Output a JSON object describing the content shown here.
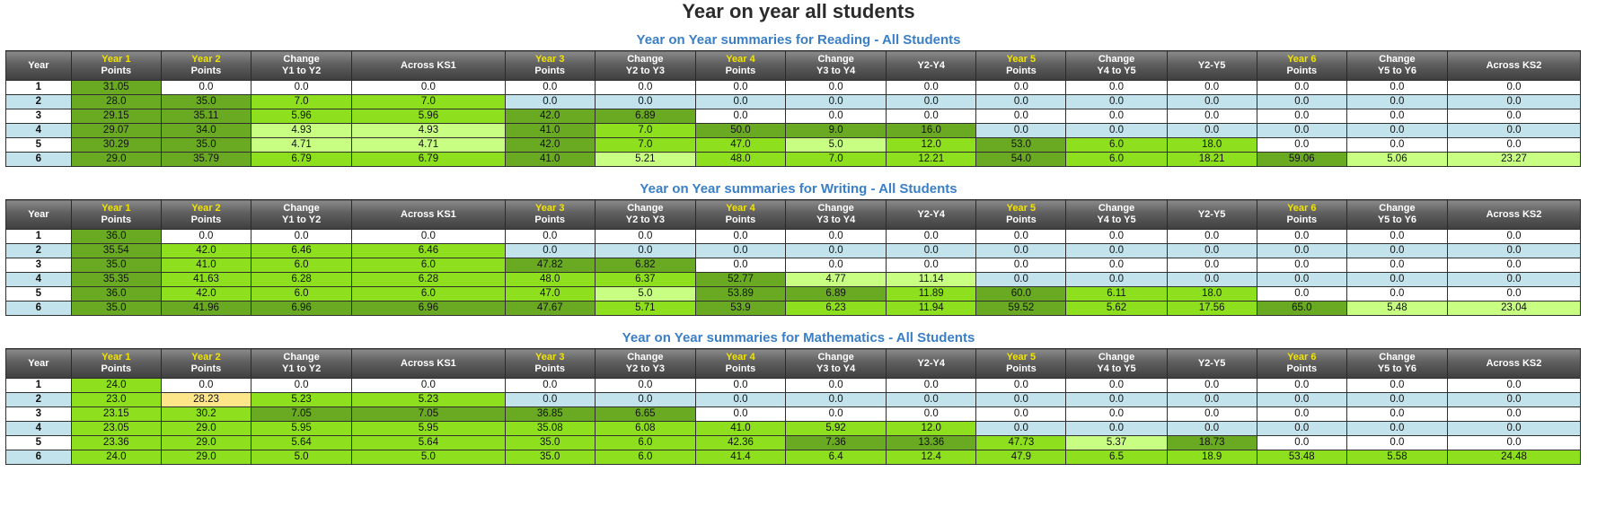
{
  "page": {
    "title": "Year on year all students"
  },
  "columns": [
    {
      "year": "",
      "label": "Year"
    },
    {
      "year": "Year 1",
      "label": "Points"
    },
    {
      "year": "Year 2",
      "label": "Points"
    },
    {
      "year": "",
      "label": "Change\nY1 to Y2"
    },
    {
      "year": "",
      "label": "Across KS1"
    },
    {
      "year": "Year 3",
      "label": "Points"
    },
    {
      "year": "",
      "label": "Change\nY2 to Y3"
    },
    {
      "year": "Year 4",
      "label": "Points"
    },
    {
      "year": "",
      "label": "Change\nY3 to Y4"
    },
    {
      "year": "",
      "label": "Y2-Y4"
    },
    {
      "year": "Year 5",
      "label": "Points"
    },
    {
      "year": "",
      "label": "Change\nY4 to Y5"
    },
    {
      "year": "",
      "label": "Y2-Y5"
    },
    {
      "year": "Year 6",
      "label": "Points"
    },
    {
      "year": "",
      "label": "Change\nY5 to Y6"
    },
    {
      "year": "",
      "label": "Across KS2"
    }
  ],
  "colors": {
    "white": "#ffffff",
    "blue": "#c3e3ec",
    "dark": "#6aaa22",
    "mid": "#8ee01f",
    "light": "#c8ff83",
    "yellow": "#fde68a",
    "section_title": "#3a7fc6",
    "header_year": "#f2e400"
  },
  "sections": [
    {
      "title": "Year on Year summaries for Reading - All Students",
      "rows": [
        {
          "c": [
            "1",
            "31.05",
            "0.0",
            "0.0",
            "0.0",
            "0.0",
            "0.0",
            "0.0",
            "0.0",
            "0.0",
            "0.0",
            "0.0",
            "0.0",
            "0.0",
            "0.0",
            "0.0"
          ],
          "s": [
            "white",
            "dark",
            "white",
            "white",
            "white",
            "white",
            "white",
            "white",
            "white",
            "white",
            "white",
            "white",
            "white",
            "white",
            "white",
            "white"
          ]
        },
        {
          "c": [
            "2",
            "28.0",
            "35.0",
            "7.0",
            "7.0",
            "0.0",
            "0.0",
            "0.0",
            "0.0",
            "0.0",
            "0.0",
            "0.0",
            "0.0",
            "0.0",
            "0.0",
            "0.0"
          ],
          "s": [
            "blue",
            "dark",
            "dark",
            "mid",
            "mid",
            "blue",
            "blue",
            "blue",
            "blue",
            "blue",
            "blue",
            "blue",
            "blue",
            "blue",
            "blue",
            "blue"
          ]
        },
        {
          "c": [
            "3",
            "29.15",
            "35.11",
            "5.96",
            "5.96",
            "42.0",
            "6.89",
            "0.0",
            "0.0",
            "0.0",
            "0.0",
            "0.0",
            "0.0",
            "0.0",
            "0.0",
            "0.0"
          ],
          "s": [
            "white",
            "dark",
            "dark",
            "mid",
            "mid",
            "dark",
            "dark",
            "white",
            "white",
            "white",
            "white",
            "white",
            "white",
            "white",
            "white",
            "white"
          ]
        },
        {
          "c": [
            "4",
            "29.07",
            "34.0",
            "4.93",
            "4.93",
            "41.0",
            "7.0",
            "50.0",
            "9.0",
            "16.0",
            "0.0",
            "0.0",
            "0.0",
            "0.0",
            "0.0",
            "0.0"
          ],
          "s": [
            "blue",
            "dark",
            "dark",
            "light",
            "light",
            "dark",
            "mid",
            "dark",
            "dark",
            "dark",
            "blue",
            "blue",
            "blue",
            "blue",
            "blue",
            "blue"
          ]
        },
        {
          "c": [
            "5",
            "30.29",
            "35.0",
            "4.71",
            "4.71",
            "42.0",
            "7.0",
            "47.0",
            "5.0",
            "12.0",
            "53.0",
            "6.0",
            "18.0",
            "0.0",
            "0.0",
            "0.0"
          ],
          "s": [
            "white",
            "dark",
            "dark",
            "light",
            "light",
            "dark",
            "mid",
            "mid",
            "light",
            "mid",
            "dark",
            "mid",
            "mid",
            "white",
            "white",
            "white"
          ]
        },
        {
          "c": [
            "6",
            "29.0",
            "35.79",
            "6.79",
            "6.79",
            "41.0",
            "5.21",
            "48.0",
            "7.0",
            "12.21",
            "54.0",
            "6.0",
            "18.21",
            "59.06",
            "5.06",
            "23.27"
          ],
          "s": [
            "blue",
            "dark",
            "dark",
            "mid",
            "mid",
            "dark",
            "light",
            "mid",
            "mid",
            "mid",
            "dark",
            "mid",
            "mid",
            "dark",
            "light",
            "light"
          ]
        }
      ]
    },
    {
      "title": "Year on Year summaries for Writing - All Students",
      "rows": [
        {
          "c": [
            "1",
            "36.0",
            "0.0",
            "0.0",
            "0.0",
            "0.0",
            "0.0",
            "0.0",
            "0.0",
            "0.0",
            "0.0",
            "0.0",
            "0.0",
            "0.0",
            "0.0",
            "0.0"
          ],
          "s": [
            "white",
            "dark",
            "white",
            "white",
            "white",
            "white",
            "white",
            "white",
            "white",
            "white",
            "white",
            "white",
            "white",
            "white",
            "white",
            "white"
          ]
        },
        {
          "c": [
            "2",
            "35.54",
            "42.0",
            "6.46",
            "6.46",
            "0.0",
            "0.0",
            "0.0",
            "0.0",
            "0.0",
            "0.0",
            "0.0",
            "0.0",
            "0.0",
            "0.0",
            "0.0"
          ],
          "s": [
            "blue",
            "dark",
            "mid",
            "mid",
            "mid",
            "blue",
            "blue",
            "blue",
            "blue",
            "blue",
            "blue",
            "blue",
            "blue",
            "blue",
            "blue",
            "blue"
          ]
        },
        {
          "c": [
            "3",
            "35.0",
            "41.0",
            "6.0",
            "6.0",
            "47.82",
            "6.82",
            "0.0",
            "0.0",
            "0.0",
            "0.0",
            "0.0",
            "0.0",
            "0.0",
            "0.0",
            "0.0"
          ],
          "s": [
            "white",
            "dark",
            "mid",
            "mid",
            "mid",
            "dark",
            "dark",
            "white",
            "white",
            "white",
            "white",
            "white",
            "white",
            "white",
            "white",
            "white"
          ]
        },
        {
          "c": [
            "4",
            "35.35",
            "41.63",
            "6.28",
            "6.28",
            "48.0",
            "6.37",
            "52.77",
            "4.77",
            "11.14",
            "0.0",
            "0.0",
            "0.0",
            "0.0",
            "0.0",
            "0.0"
          ],
          "s": [
            "blue",
            "dark",
            "mid",
            "mid",
            "mid",
            "mid",
            "mid",
            "dark",
            "light",
            "light",
            "blue",
            "blue",
            "blue",
            "blue",
            "blue",
            "blue"
          ]
        },
        {
          "c": [
            "5",
            "36.0",
            "42.0",
            "6.0",
            "6.0",
            "47.0",
            "5.0",
            "53.89",
            "6.89",
            "11.89",
            "60.0",
            "6.11",
            "18.0",
            "0.0",
            "0.0",
            "0.0"
          ],
          "s": [
            "white",
            "dark",
            "mid",
            "mid",
            "mid",
            "mid",
            "light",
            "dark",
            "dark",
            "mid",
            "dark",
            "mid",
            "mid",
            "white",
            "white",
            "white"
          ]
        },
        {
          "c": [
            "6",
            "35.0",
            "41.96",
            "6.96",
            "6.96",
            "47.67",
            "5.71",
            "53.9",
            "6.23",
            "11.94",
            "59.52",
            "5.62",
            "17.56",
            "65.0",
            "5.48",
            "23.04"
          ],
          "s": [
            "blue",
            "dark",
            "dark",
            "dark",
            "dark",
            "dark",
            "mid",
            "dark",
            "mid",
            "mid",
            "dark",
            "mid",
            "mid",
            "dark",
            "light",
            "light"
          ]
        }
      ]
    },
    {
      "title": "Year on Year summaries for Mathematics - All Students",
      "rows": [
        {
          "c": [
            "1",
            "24.0",
            "0.0",
            "0.0",
            "0.0",
            "0.0",
            "0.0",
            "0.0",
            "0.0",
            "0.0",
            "0.0",
            "0.0",
            "0.0",
            "0.0",
            "0.0",
            "0.0"
          ],
          "s": [
            "white",
            "mid",
            "white",
            "white",
            "white",
            "white",
            "white",
            "white",
            "white",
            "white",
            "white",
            "white",
            "white",
            "white",
            "white",
            "white"
          ]
        },
        {
          "c": [
            "2",
            "23.0",
            "28.23",
            "5.23",
            "5.23",
            "0.0",
            "0.0",
            "0.0",
            "0.0",
            "0.0",
            "0.0",
            "0.0",
            "0.0",
            "0.0",
            "0.0",
            "0.0"
          ],
          "s": [
            "blue",
            "mid",
            "yellow",
            "mid",
            "mid",
            "blue",
            "blue",
            "blue",
            "blue",
            "blue",
            "blue",
            "blue",
            "blue",
            "blue",
            "blue",
            "blue"
          ]
        },
        {
          "c": [
            "3",
            "23.15",
            "30.2",
            "7.05",
            "7.05",
            "36.85",
            "6.65",
            "0.0",
            "0.0",
            "0.0",
            "0.0",
            "0.0",
            "0.0",
            "0.0",
            "0.0",
            "0.0"
          ],
          "s": [
            "white",
            "mid",
            "mid",
            "dark",
            "dark",
            "dark",
            "dark",
            "white",
            "white",
            "white",
            "white",
            "white",
            "white",
            "white",
            "white",
            "white"
          ]
        },
        {
          "c": [
            "4",
            "23.05",
            "29.0",
            "5.95",
            "5.95",
            "35.08",
            "6.08",
            "41.0",
            "5.92",
            "12.0",
            "0.0",
            "0.0",
            "0.0",
            "0.0",
            "0.0",
            "0.0"
          ],
          "s": [
            "blue",
            "mid",
            "mid",
            "mid",
            "mid",
            "mid",
            "mid",
            "mid",
            "mid",
            "mid",
            "blue",
            "blue",
            "blue",
            "blue",
            "blue",
            "blue"
          ]
        },
        {
          "c": [
            "5",
            "23.36",
            "29.0",
            "5.64",
            "5.64",
            "35.0",
            "6.0",
            "42.36",
            "7.36",
            "13.36",
            "47.73",
            "5.37",
            "18.73",
            "0.0",
            "0.0",
            "0.0"
          ],
          "s": [
            "white",
            "mid",
            "mid",
            "mid",
            "mid",
            "mid",
            "mid",
            "mid",
            "dark",
            "dark",
            "mid",
            "light",
            "dark",
            "white",
            "white",
            "white"
          ]
        },
        {
          "c": [
            "6",
            "24.0",
            "29.0",
            "5.0",
            "5.0",
            "35.0",
            "6.0",
            "41.4",
            "6.4",
            "12.4",
            "47.9",
            "6.5",
            "18.9",
            "53.48",
            "5.58",
            "24.48"
          ],
          "s": [
            "blue",
            "mid",
            "mid",
            "mid",
            "mid",
            "mid",
            "mid",
            "mid",
            "mid",
            "mid",
            "mid",
            "mid",
            "mid",
            "mid",
            "mid",
            "mid"
          ]
        }
      ]
    }
  ]
}
